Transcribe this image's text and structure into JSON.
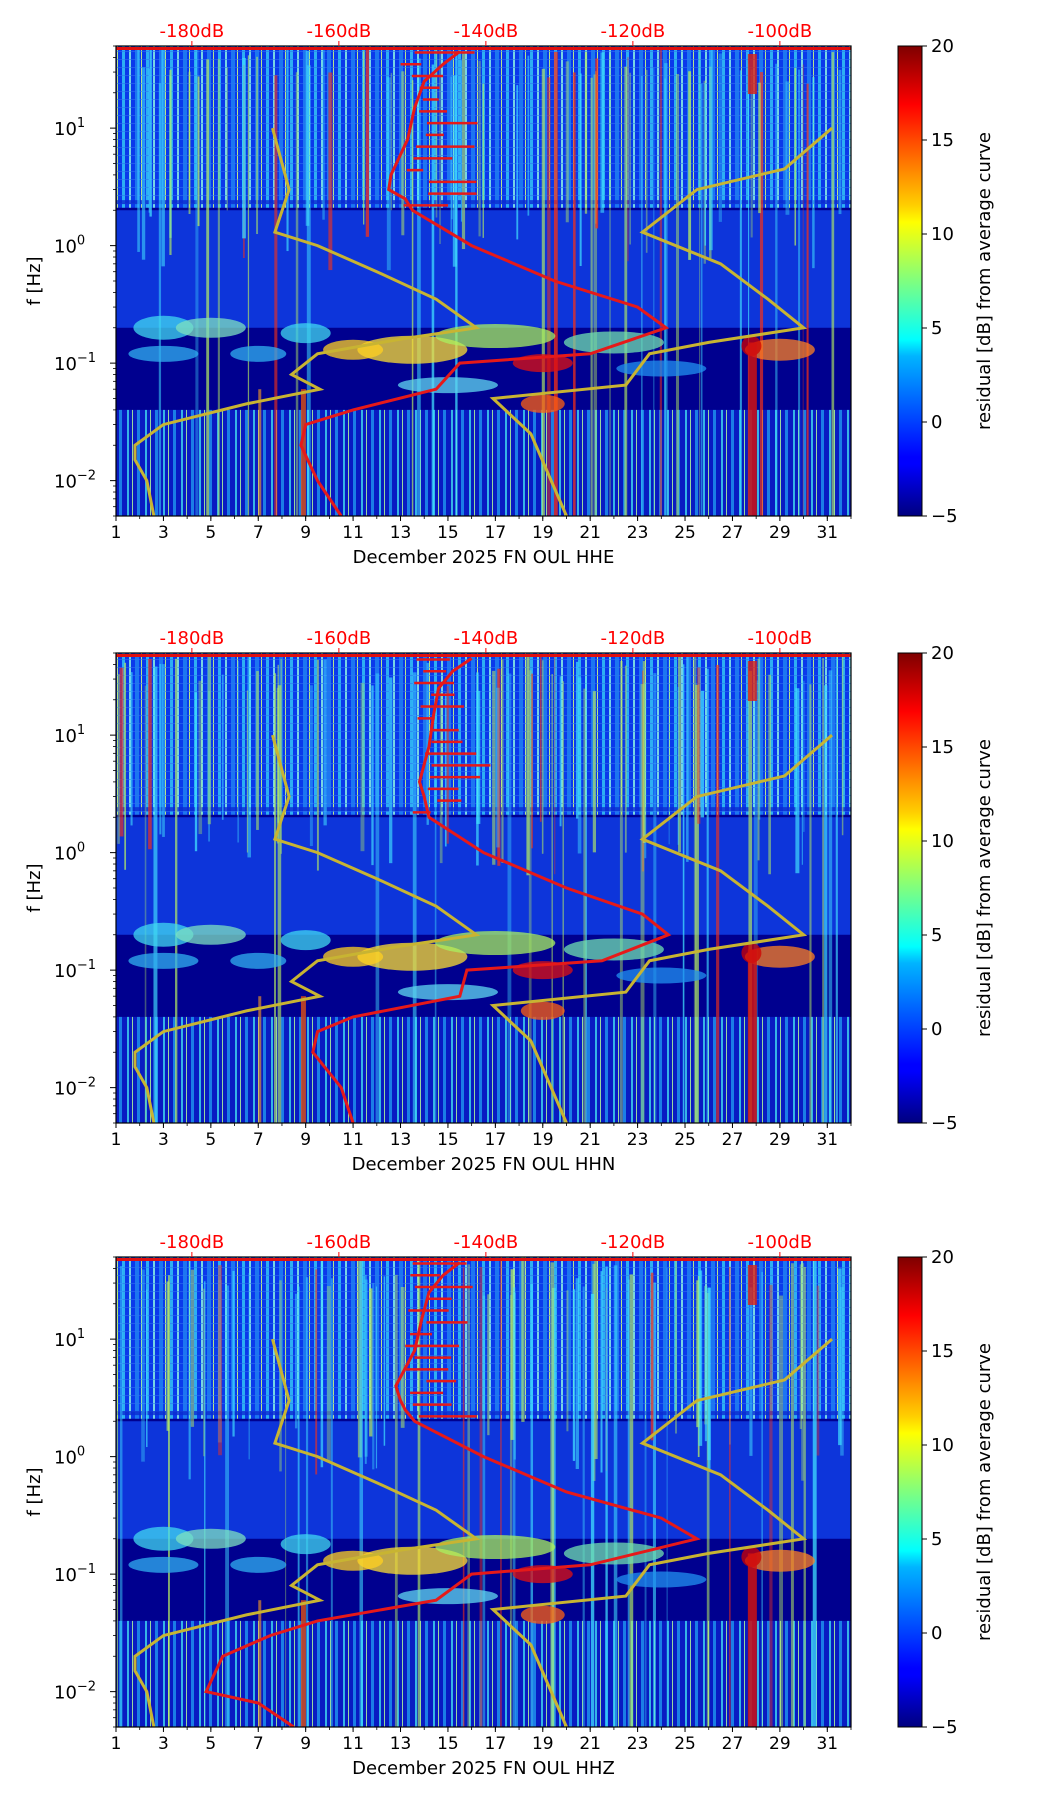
{
  "chart_data": [
    {
      "type": "heatmap",
      "panel": "HHE",
      "xlabel": "December 2025 FN OUL  HHE",
      "ylabel": "f [Hz]",
      "x_ticks": [
        1,
        3,
        5,
        7,
        9,
        11,
        13,
        15,
        17,
        19,
        21,
        23,
        25,
        27,
        29,
        31
      ],
      "xlim": [
        1,
        32
      ],
      "ylim": [
        0.005,
        50
      ],
      "y_ticks": [
        {
          "value": 0.01,
          "base": "10",
          "exp": "−2"
        },
        {
          "value": 0.1,
          "base": "10",
          "exp": "−1"
        },
        {
          "value": 1,
          "base": "10",
          "exp": "0"
        },
        {
          "value": 10,
          "base": "10",
          "exp": "1"
        }
      ],
      "top_axis_labels": [
        "-180dB",
        "-160dB",
        "-140dB",
        "-120dB",
        "-100dB"
      ],
      "top_axis_days": [
        4.2,
        10.4,
        16.6,
        22.8,
        29.0
      ],
      "colorbar": {
        "label": "residual [dB] from average curve",
        "min": -5,
        "max": 20,
        "ticks": [
          "−5",
          "0",
          "5",
          "10",
          "15",
          "20"
        ],
        "tick_values": [
          -5,
          0,
          5,
          10,
          15,
          20
        ]
      },
      "red_curve": [
        [
          15.5,
          45
        ],
        [
          14.8,
          35
        ],
        [
          14.0,
          25
        ],
        [
          13.6,
          15
        ],
        [
          13.3,
          8
        ],
        [
          12.6,
          4
        ],
        [
          12.5,
          3
        ],
        [
          13.2,
          2.5
        ],
        [
          13.5,
          2
        ],
        [
          16.0,
          1.0
        ],
        [
          19.5,
          0.5
        ],
        [
          23.0,
          0.3
        ],
        [
          24.2,
          0.2
        ],
        [
          21.0,
          0.12
        ],
        [
          15.5,
          0.1
        ],
        [
          14.5,
          0.06
        ],
        [
          11.0,
          0.04
        ],
        [
          9.0,
          0.03
        ],
        [
          8.8,
          0.02
        ],
        [
          9.5,
          0.01
        ],
        [
          10.5,
          0.005
        ]
      ],
      "yellow_left_curve": [
        [
          7.6,
          10
        ],
        [
          8.3,
          3
        ],
        [
          7.7,
          1.3
        ],
        [
          9.5,
          1.0
        ],
        [
          12.0,
          0.6
        ],
        [
          14.5,
          0.35
        ],
        [
          16.2,
          0.2
        ],
        [
          13.0,
          0.16
        ],
        [
          9.5,
          0.12
        ],
        [
          8.4,
          0.08
        ],
        [
          9.6,
          0.06
        ],
        [
          6.5,
          0.045
        ],
        [
          3.0,
          0.03
        ],
        [
          1.8,
          0.02
        ],
        [
          1.8,
          0.015
        ],
        [
          2.3,
          0.01
        ],
        [
          2.6,
          0.005
        ]
      ],
      "yellow_right_curve": [
        [
          31.2,
          10
        ],
        [
          29.2,
          4.5
        ],
        [
          25.5,
          3.0
        ],
        [
          23.2,
          1.3
        ],
        [
          26.5,
          0.7
        ],
        [
          28.5,
          0.35
        ],
        [
          30.0,
          0.2
        ],
        [
          26.0,
          0.15
        ],
        [
          23.5,
          0.12
        ],
        [
          22.5,
          0.065
        ],
        [
          16.9,
          0.05
        ],
        [
          18.5,
          0.025
        ],
        [
          20.0,
          0.005
        ]
      ]
    },
    {
      "type": "heatmap",
      "panel": "HHN",
      "xlabel": "December 2025 FN OUL  HHN",
      "ylabel": "f [Hz]",
      "x_ticks": [
        1,
        3,
        5,
        7,
        9,
        11,
        13,
        15,
        17,
        19,
        21,
        23,
        25,
        27,
        29,
        31
      ],
      "xlim": [
        1,
        32
      ],
      "ylim": [
        0.005,
        50
      ],
      "y_ticks": [
        {
          "value": 0.01,
          "base": "10",
          "exp": "−2"
        },
        {
          "value": 0.1,
          "base": "10",
          "exp": "−1"
        },
        {
          "value": 1,
          "base": "10",
          "exp": "0"
        },
        {
          "value": 10,
          "base": "10",
          "exp": "1"
        }
      ],
      "top_axis_labels": [
        "-180dB",
        "-160dB",
        "-140dB",
        "-120dB",
        "-100dB"
      ],
      "top_axis_days": [
        4.2,
        10.4,
        16.6,
        22.8,
        29.0
      ],
      "colorbar": {
        "label": "residual [dB] from average curve",
        "min": -5,
        "max": 20,
        "ticks": [
          "−5",
          "0",
          "5",
          "10",
          "15",
          "20"
        ],
        "tick_values": [
          -5,
          0,
          5,
          10,
          15,
          20
        ]
      },
      "red_curve": [
        [
          16.0,
          45
        ],
        [
          15.2,
          35
        ],
        [
          14.6,
          25
        ],
        [
          14.4,
          15
        ],
        [
          14.2,
          8
        ],
        [
          13.8,
          4
        ],
        [
          14.0,
          3
        ],
        [
          14.2,
          2
        ],
        [
          16.5,
          1.0
        ],
        [
          20.0,
          0.5
        ],
        [
          23.2,
          0.3
        ],
        [
          24.3,
          0.2
        ],
        [
          21.5,
          0.12
        ],
        [
          15.8,
          0.1
        ],
        [
          15.5,
          0.06
        ],
        [
          11.0,
          0.04
        ],
        [
          9.5,
          0.03
        ],
        [
          9.3,
          0.02
        ],
        [
          10.5,
          0.01
        ],
        [
          11.0,
          0.005
        ]
      ],
      "yellow_left_curve": [
        [
          7.6,
          10
        ],
        [
          8.3,
          3
        ],
        [
          7.7,
          1.3
        ],
        [
          9.5,
          1.0
        ],
        [
          12.0,
          0.6
        ],
        [
          14.5,
          0.35
        ],
        [
          16.2,
          0.2
        ],
        [
          13.0,
          0.16
        ],
        [
          9.5,
          0.12
        ],
        [
          8.4,
          0.08
        ],
        [
          9.6,
          0.06
        ],
        [
          6.5,
          0.045
        ],
        [
          3.0,
          0.03
        ],
        [
          1.8,
          0.02
        ],
        [
          1.8,
          0.015
        ],
        [
          2.3,
          0.01
        ],
        [
          2.6,
          0.005
        ]
      ],
      "yellow_right_curve": [
        [
          31.2,
          10
        ],
        [
          29.2,
          4.5
        ],
        [
          25.5,
          3.0
        ],
        [
          23.2,
          1.3
        ],
        [
          26.5,
          0.7
        ],
        [
          28.5,
          0.35
        ],
        [
          30.0,
          0.2
        ],
        [
          26.0,
          0.15
        ],
        [
          23.5,
          0.12
        ],
        [
          22.5,
          0.065
        ],
        [
          16.9,
          0.05
        ],
        [
          18.5,
          0.025
        ],
        [
          20.0,
          0.005
        ]
      ]
    },
    {
      "type": "heatmap",
      "panel": "HHZ",
      "xlabel": "December 2025 FN OUL  HHZ",
      "ylabel": "f [Hz]",
      "x_ticks": [
        1,
        3,
        5,
        7,
        9,
        11,
        13,
        15,
        17,
        19,
        21,
        23,
        25,
        27,
        29,
        31
      ],
      "xlim": [
        1,
        32
      ],
      "ylim": [
        0.005,
        50
      ],
      "y_ticks": [
        {
          "value": 0.01,
          "base": "10",
          "exp": "−2"
        },
        {
          "value": 0.1,
          "base": "10",
          "exp": "−1"
        },
        {
          "value": 1,
          "base": "10",
          "exp": "0"
        },
        {
          "value": 10,
          "base": "10",
          "exp": "1"
        }
      ],
      "top_axis_labels": [
        "-180dB",
        "-160dB",
        "-140dB",
        "-120dB",
        "-100dB"
      ],
      "top_axis_days": [
        4.2,
        10.4,
        16.6,
        22.8,
        29.0
      ],
      "colorbar": {
        "label": "residual [dB] from average curve",
        "min": -5,
        "max": 20,
        "ticks": [
          "−5",
          "0",
          "5",
          "10",
          "15",
          "20"
        ],
        "tick_values": [
          -5,
          0,
          5,
          10,
          15,
          20
        ]
      },
      "red_curve": [
        [
          15.5,
          45
        ],
        [
          14.8,
          35
        ],
        [
          14.2,
          25
        ],
        [
          13.9,
          15
        ],
        [
          13.6,
          8
        ],
        [
          12.8,
          4
        ],
        [
          13.0,
          3
        ],
        [
          13.2,
          2.5
        ],
        [
          13.6,
          2
        ],
        [
          16.5,
          1.0
        ],
        [
          20.0,
          0.5
        ],
        [
          24.0,
          0.3
        ],
        [
          25.5,
          0.2
        ],
        [
          21.0,
          0.12
        ],
        [
          16.0,
          0.1
        ],
        [
          14.5,
          0.06
        ],
        [
          9.5,
          0.04
        ],
        [
          7.5,
          0.03
        ],
        [
          5.5,
          0.02
        ],
        [
          4.8,
          0.01
        ],
        [
          7.0,
          0.008
        ],
        [
          8.5,
          0.005
        ]
      ],
      "yellow_left_curve": [
        [
          7.6,
          10
        ],
        [
          8.3,
          3
        ],
        [
          7.7,
          1.3
        ],
        [
          9.5,
          1.0
        ],
        [
          12.0,
          0.6
        ],
        [
          14.5,
          0.35
        ],
        [
          16.2,
          0.2
        ],
        [
          13.0,
          0.16
        ],
        [
          9.5,
          0.12
        ],
        [
          8.4,
          0.08
        ],
        [
          9.6,
          0.06
        ],
        [
          6.5,
          0.045
        ],
        [
          3.0,
          0.03
        ],
        [
          1.8,
          0.02
        ],
        [
          1.8,
          0.015
        ],
        [
          2.3,
          0.01
        ],
        [
          2.6,
          0.005
        ]
      ],
      "yellow_right_curve": [
        [
          31.2,
          10
        ],
        [
          29.2,
          4.5
        ],
        [
          25.5,
          3.0
        ],
        [
          23.2,
          1.3
        ],
        [
          26.5,
          0.7
        ],
        [
          28.5,
          0.35
        ],
        [
          30.0,
          0.2
        ],
        [
          26.0,
          0.15
        ],
        [
          23.5,
          0.12
        ],
        [
          22.5,
          0.065
        ],
        [
          16.9,
          0.05
        ],
        [
          18.5,
          0.025
        ],
        [
          20.0,
          0.005
        ]
      ]
    }
  ],
  "colors": {
    "red_curve": "#e61919",
    "yellow_curve": "#c8b432",
    "top_axis_text": "#ff0000",
    "background": "#00008f"
  }
}
